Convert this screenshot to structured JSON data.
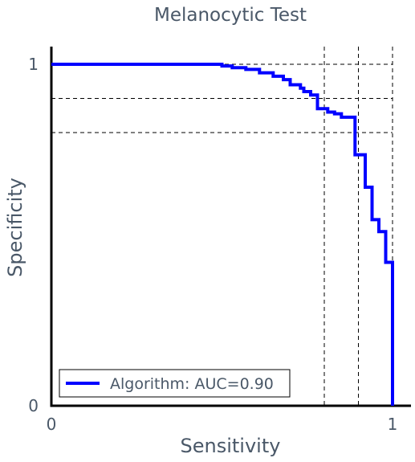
{
  "chart_data": {
    "type": "line",
    "title": "Melanocytic Test",
    "xlabel": "Sensitivity",
    "ylabel": "Specificity",
    "xlim": [
      0,
      1
    ],
    "ylim": [
      0,
      1
    ],
    "x_ticks": [
      "0",
      "1"
    ],
    "y_ticks": [
      "0",
      "1"
    ],
    "grid": false,
    "legend_position": "bottom-left",
    "series": [
      {
        "name": "Algorithm: AUC=0.90",
        "color": "#0000ff",
        "step": true,
        "points": [
          [
            0.0,
            1.0
          ],
          [
            0.5,
            1.0
          ],
          [
            0.5,
            0.995
          ],
          [
            0.53,
            0.995
          ],
          [
            0.53,
            0.99
          ],
          [
            0.57,
            0.99
          ],
          [
            0.57,
            0.985
          ],
          [
            0.61,
            0.985
          ],
          [
            0.61,
            0.975
          ],
          [
            0.65,
            0.975
          ],
          [
            0.65,
            0.965
          ],
          [
            0.68,
            0.965
          ],
          [
            0.68,
            0.955
          ],
          [
            0.7,
            0.955
          ],
          [
            0.7,
            0.94
          ],
          [
            0.73,
            0.94
          ],
          [
            0.73,
            0.93
          ],
          [
            0.74,
            0.93
          ],
          [
            0.74,
            0.92
          ],
          [
            0.76,
            0.92
          ],
          [
            0.76,
            0.91
          ],
          [
            0.78,
            0.91
          ],
          [
            0.78,
            0.87
          ],
          [
            0.81,
            0.87
          ],
          [
            0.81,
            0.86
          ],
          [
            0.83,
            0.86
          ],
          [
            0.83,
            0.855
          ],
          [
            0.85,
            0.855
          ],
          [
            0.85,
            0.845
          ],
          [
            0.89,
            0.845
          ],
          [
            0.89,
            0.735
          ],
          [
            0.92,
            0.735
          ],
          [
            0.92,
            0.64
          ],
          [
            0.94,
            0.64
          ],
          [
            0.94,
            0.545
          ],
          [
            0.96,
            0.545
          ],
          [
            0.96,
            0.51
          ],
          [
            0.98,
            0.51
          ],
          [
            0.98,
            0.42
          ],
          [
            1.0,
            0.42
          ],
          [
            1.0,
            0.315
          ],
          [
            1.0,
            0.0
          ]
        ]
      }
    ],
    "reference_lines": {
      "vertical_x": [
        0.8,
        0.9,
        1.0
      ],
      "horizontal_y": [
        1.0,
        0.9,
        0.8
      ],
      "style": "dashed"
    }
  }
}
